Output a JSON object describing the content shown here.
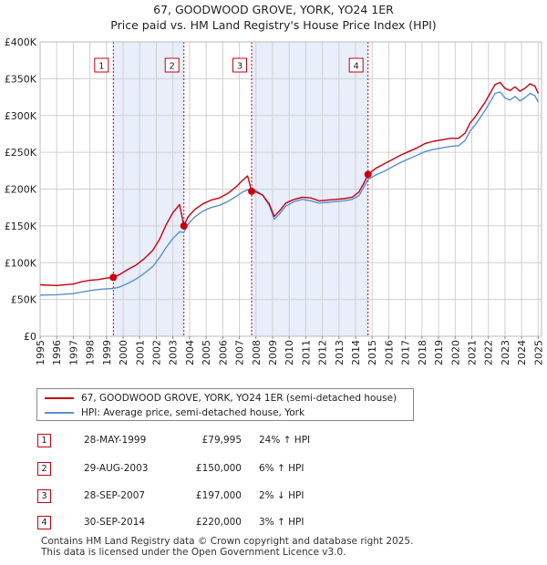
{
  "title": {
    "line1": "67, GOODWOOD GROVE, YORK, YO24 1ER",
    "line2": "Price paid vs. HM Land Registry's House Price Index (HPI)"
  },
  "chart_data": {
    "type": "line",
    "title": "67, GOODWOOD GROVE, YORK, YO24 1ER — Price paid vs. HM Land Registry's House Price Index (HPI)",
    "xlabel": "",
    "ylabel": "",
    "xlim": [
      1995,
      2025.2
    ],
    "ylim": [
      0,
      400000
    ],
    "y_ticks": [
      {
        "value": 0,
        "label": "£0"
      },
      {
        "value": 50000,
        "label": "£50K"
      },
      {
        "value": 100000,
        "label": "£100K"
      },
      {
        "value": 150000,
        "label": "£150K"
      },
      {
        "value": 200000,
        "label": "£200K"
      },
      {
        "value": 250000,
        "label": "£250K"
      },
      {
        "value": 300000,
        "label": "£300K"
      },
      {
        "value": 350000,
        "label": "£350K"
      },
      {
        "value": 400000,
        "label": "£400K"
      }
    ],
    "x_ticks": [
      "1995",
      "1996",
      "1997",
      "1998",
      "1999",
      "2000",
      "2001",
      "2002",
      "2003",
      "2004",
      "2005",
      "2006",
      "2007",
      "2008",
      "2009",
      "2010",
      "2011",
      "2012",
      "2013",
      "2014",
      "2015",
      "2016",
      "2017",
      "2018",
      "2019",
      "2020",
      "2021",
      "2022",
      "2023",
      "2024",
      "2025"
    ],
    "grid": true,
    "shaded_periods": [
      [
        1999.41,
        2003.66
      ],
      [
        2007.74,
        2014.75
      ]
    ],
    "series": [
      {
        "name": "67, GOODWOOD GROVE, YORK, YO24 1ER (semi-detached house)",
        "color": "#c8000e",
        "points": [
          [
            1995.0,
            70000
          ],
          [
            1996.0,
            69000
          ],
          [
            1997.0,
            71000
          ],
          [
            1997.5,
            74000
          ],
          [
            1998.0,
            76000
          ],
          [
            1998.5,
            77000
          ],
          [
            1999.0,
            79000
          ],
          [
            1999.41,
            79995
          ],
          [
            1999.8,
            84000
          ],
          [
            2000.3,
            91000
          ],
          [
            2000.8,
            97000
          ],
          [
            2001.3,
            106000
          ],
          [
            2001.8,
            117000
          ],
          [
            2002.2,
            132000
          ],
          [
            2002.6,
            152000
          ],
          [
            2003.0,
            168000
          ],
          [
            2003.4,
            179000
          ],
          [
            2003.66,
            150000
          ],
          [
            2003.9,
            162000
          ],
          [
            2004.3,
            172000
          ],
          [
            2004.8,
            180000
          ],
          [
            2005.3,
            185000
          ],
          [
            2005.8,
            188000
          ],
          [
            2006.3,
            194000
          ],
          [
            2006.8,
            203000
          ],
          [
            2007.2,
            212000
          ],
          [
            2007.5,
            218000
          ],
          [
            2007.74,
            197000
          ],
          [
            2008.0,
            196000
          ],
          [
            2008.4,
            192000
          ],
          [
            2008.8,
            180000
          ],
          [
            2009.1,
            163000
          ],
          [
            2009.4,
            170000
          ],
          [
            2009.8,
            181000
          ],
          [
            2010.3,
            186000
          ],
          [
            2010.8,
            189000
          ],
          [
            2011.3,
            188000
          ],
          [
            2011.8,
            184000
          ],
          [
            2012.3,
            185000
          ],
          [
            2012.8,
            186000
          ],
          [
            2013.3,
            187000
          ],
          [
            2013.8,
            189000
          ],
          [
            2014.2,
            196000
          ],
          [
            2014.5,
            208000
          ],
          [
            2014.75,
            220000
          ],
          [
            2015.2,
            228000
          ],
          [
            2015.7,
            234000
          ],
          [
            2016.2,
            240000
          ],
          [
            2016.7,
            246000
          ],
          [
            2017.2,
            251000
          ],
          [
            2017.7,
            256000
          ],
          [
            2018.2,
            262000
          ],
          [
            2018.7,
            265000
          ],
          [
            2019.2,
            267000
          ],
          [
            2019.7,
            269000
          ],
          [
            2020.2,
            269000
          ],
          [
            2020.6,
            276000
          ],
          [
            2020.9,
            290000
          ],
          [
            2021.2,
            298000
          ],
          [
            2021.5,
            308000
          ],
          [
            2021.8,
            318000
          ],
          [
            2022.1,
            330000
          ],
          [
            2022.4,
            342000
          ],
          [
            2022.7,
            345000
          ],
          [
            2023.0,
            337000
          ],
          [
            2023.3,
            334000
          ],
          [
            2023.6,
            339000
          ],
          [
            2023.9,
            333000
          ],
          [
            2024.2,
            337000
          ],
          [
            2024.5,
            343000
          ],
          [
            2024.8,
            340000
          ],
          [
            2025.0,
            330000
          ]
        ]
      },
      {
        "name": "HPI: Average price, semi-detached house, York",
        "color": "#5b8fd0",
        "points": [
          [
            1995.0,
            56000
          ],
          [
            1996.0,
            56500
          ],
          [
            1997.0,
            58000
          ],
          [
            1997.5,
            60000
          ],
          [
            1998.0,
            62000
          ],
          [
            1998.5,
            63500
          ],
          [
            1999.0,
            64500
          ],
          [
            1999.41,
            65000
          ],
          [
            1999.8,
            67000
          ],
          [
            2000.3,
            72000
          ],
          [
            2000.8,
            78000
          ],
          [
            2001.3,
            86000
          ],
          [
            2001.8,
            95000
          ],
          [
            2002.2,
            107000
          ],
          [
            2002.6,
            121000
          ],
          [
            2003.0,
            133000
          ],
          [
            2003.4,
            142000
          ],
          [
            2003.66,
            141000
          ],
          [
            2003.9,
            152000
          ],
          [
            2004.3,
            162000
          ],
          [
            2004.8,
            170000
          ],
          [
            2005.3,
            175000
          ],
          [
            2005.8,
            178000
          ],
          [
            2006.3,
            183000
          ],
          [
            2006.8,
            190000
          ],
          [
            2007.2,
            196000
          ],
          [
            2007.5,
            199000
          ],
          [
            2007.74,
            200000
          ],
          [
            2008.0,
            198000
          ],
          [
            2008.4,
            192000
          ],
          [
            2008.8,
            178000
          ],
          [
            2009.1,
            159000
          ],
          [
            2009.4,
            166000
          ],
          [
            2009.8,
            177000
          ],
          [
            2010.3,
            183000
          ],
          [
            2010.8,
            186000
          ],
          [
            2011.3,
            184000
          ],
          [
            2011.8,
            181000
          ],
          [
            2012.3,
            182000
          ],
          [
            2012.8,
            183000
          ],
          [
            2013.3,
            184000
          ],
          [
            2013.8,
            186000
          ],
          [
            2014.2,
            191000
          ],
          [
            2014.5,
            203000
          ],
          [
            2014.75,
            213000
          ],
          [
            2015.2,
            219000
          ],
          [
            2015.7,
            224000
          ],
          [
            2016.2,
            230000
          ],
          [
            2016.7,
            236000
          ],
          [
            2017.2,
            241000
          ],
          [
            2017.7,
            246000
          ],
          [
            2018.2,
            251000
          ],
          [
            2018.7,
            254000
          ],
          [
            2019.2,
            256000
          ],
          [
            2019.7,
            258000
          ],
          [
            2020.2,
            259000
          ],
          [
            2020.6,
            266000
          ],
          [
            2020.9,
            279000
          ],
          [
            2021.2,
            287000
          ],
          [
            2021.5,
            297000
          ],
          [
            2021.8,
            307000
          ],
          [
            2022.1,
            318000
          ],
          [
            2022.4,
            330000
          ],
          [
            2022.7,
            332000
          ],
          [
            2023.0,
            324000
          ],
          [
            2023.3,
            321000
          ],
          [
            2023.6,
            326000
          ],
          [
            2023.9,
            320000
          ],
          [
            2024.2,
            324000
          ],
          [
            2024.5,
            330000
          ],
          [
            2024.8,
            327000
          ],
          [
            2025.0,
            318000
          ]
        ]
      }
    ],
    "sales": [
      {
        "num": "1",
        "x": 1999.41,
        "price": 79995
      },
      {
        "num": "2",
        "x": 2003.66,
        "price": 150000
      },
      {
        "num": "3",
        "x": 2007.74,
        "price": 197000
      },
      {
        "num": "4",
        "x": 2014.75,
        "price": 220000
      }
    ]
  },
  "legend": [
    {
      "label": "67, GOODWOOD GROVE, YORK, YO24 1ER (semi-detached house)",
      "color": "#c8000e"
    },
    {
      "label": "HPI: Average price, semi-detached house, York",
      "color": "#5b8fd0"
    }
  ],
  "sales_table": [
    {
      "num": "1",
      "date": "28-MAY-1999",
      "price": "£79,995",
      "hpi": "24% ↑ HPI"
    },
    {
      "num": "2",
      "date": "29-AUG-2003",
      "price": "£150,000",
      "hpi": "6% ↑ HPI"
    },
    {
      "num": "3",
      "date": "28-SEP-2007",
      "price": "£197,000",
      "hpi": "2% ↓ HPI"
    },
    {
      "num": "4",
      "date": "30-SEP-2014",
      "price": "£220,000",
      "hpi": "3% ↑ HPI"
    }
  ],
  "footer": {
    "line1": "Contains HM Land Registry data © Crown copyright and database right 2025.",
    "line2": "This data is licensed under the Open Government Licence v3.0."
  }
}
